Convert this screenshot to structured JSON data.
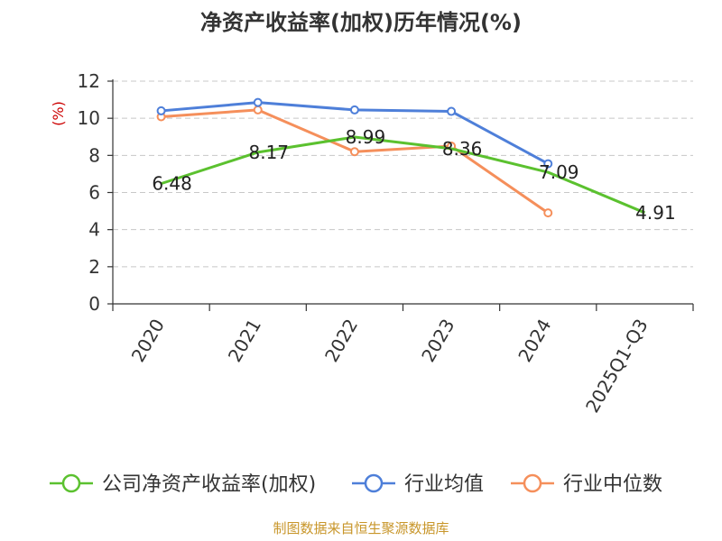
{
  "chart_data": {
    "type": "line",
    "title": "净资产收益率(加权)历年情况(%)",
    "ylabel": "(%)",
    "xlabel": "",
    "categories": [
      "2020",
      "2021",
      "2022",
      "2023",
      "2024",
      "2025Q1-Q3"
    ],
    "ylim": [
      0,
      12
    ],
    "yticks": [
      0,
      2,
      4,
      6,
      8,
      10,
      12
    ],
    "grid": true,
    "legend_position": "bottom",
    "series": [
      {
        "name": "公司净资产收益率(加权)",
        "color": "#5bc12f",
        "values": [
          6.48,
          8.17,
          8.99,
          8.36,
          7.09,
          4.91
        ],
        "labels": [
          "6.48",
          "8.17",
          "8.99",
          "8.36",
          "7.09",
          "4.91"
        ]
      },
      {
        "name": "行业均值",
        "color": "#4e7fd9",
        "values": [
          10.4,
          10.85,
          10.45,
          10.37,
          7.55,
          null
        ]
      },
      {
        "name": "行业中位数",
        "color": "#f58f5b",
        "values": [
          10.08,
          10.45,
          8.2,
          8.5,
          4.9,
          null
        ]
      }
    ]
  },
  "source": "制图数据来自恒生聚源数据库"
}
